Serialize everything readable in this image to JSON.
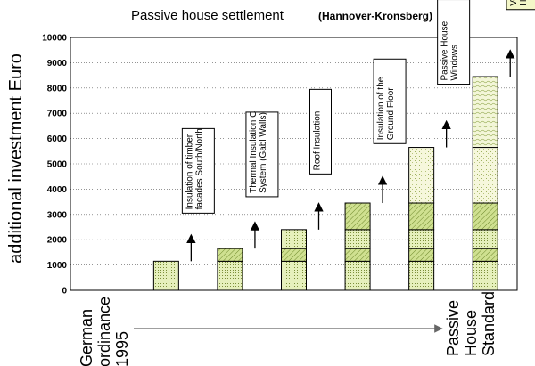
{
  "chart_data": {
    "type": "bar",
    "title": "Passive house settlement",
    "subtitle": "(Hannover-Kronsberg)",
    "ylabel": "additional investment Euro",
    "ylim": [
      0,
      10000
    ],
    "yticks": [
      0,
      1000,
      2000,
      3000,
      4000,
      5000,
      6000,
      7000,
      8000,
      9000,
      10000
    ],
    "x_start_label": [
      "German",
      "ordinance",
      "1995"
    ],
    "x_end_label": [
      "Passive",
      "House",
      "Standard"
    ],
    "stack_order": [
      "Insulation of timber facades South/North",
      "Thermal Insulation Composite System (Gabl Walls)",
      "Roof Insulation",
      "Insulation of the Ground Floor",
      "Passive House Windows",
      "Ventilation with Heat Recovery"
    ],
    "bars": [
      {
        "segments": []
      },
      {
        "segments": [
          1150
        ]
      },
      {
        "segments": [
          1150,
          500
        ]
      },
      {
        "segments": [
          1150,
          500,
          750
        ]
      },
      {
        "segments": [
          1150,
          500,
          750,
          1050
        ]
      },
      {
        "segments": [
          1150,
          500,
          750,
          1050,
          2200
        ]
      },
      {
        "segments": [
          1150,
          500,
          750,
          1050,
          2200,
          2800
        ]
      }
    ],
    "annotations": [
      {
        "lines": [
          "Insulation of timber",
          "facades South/North"
        ],
        "bar": 2
      },
      {
        "lines": [
          "Thermal Insulation C",
          "System (Gabl Walls)"
        ],
        "bar": 3
      },
      {
        "lines": [
          "Roof Insulation"
        ],
        "bar": 4
      },
      {
        "lines": [
          "Insulation of the",
          "Ground Floor"
        ],
        "bar": 5
      },
      {
        "lines": [
          "Passive House",
          "Windows"
        ],
        "bar": 6
      },
      {
        "lines": [
          "Ventilation with",
          "Heat Recovery"
        ],
        "bar": 7
      }
    ],
    "colors": {
      "light_green": "#e6f0bc",
      "mid_green": "#cfe090",
      "pale_yellow": "#f6f7dc",
      "dot": "#7c8f3a",
      "hatch": "#6f8a2c",
      "bar_border": "#000000",
      "arrow_gray": "#666666"
    }
  }
}
